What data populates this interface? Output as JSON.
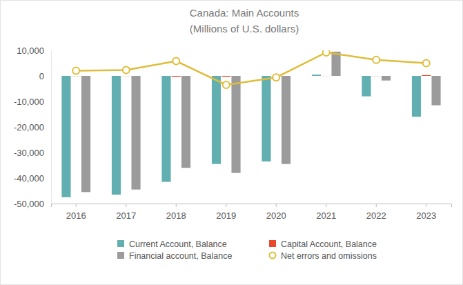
{
  "chart_data": {
    "type": "bar",
    "title": "Canada: Main Accounts",
    "subtitle": "(Millions of U.S. dollars)",
    "categories": [
      "2016",
      "2017",
      "2018",
      "2019",
      "2020",
      "2021",
      "2022",
      "2023"
    ],
    "series": [
      {
        "name": "Current Account, Balance",
        "color": "#62afb1",
        "type": "bar",
        "values": [
          -47500,
          -46500,
          -41500,
          -34500,
          -33500,
          500,
          -8000,
          -16000
        ]
      },
      {
        "name": "Capital Account, Balance",
        "color": "#e8482b",
        "type": "bar",
        "values": [
          -50,
          -50,
          -300,
          -300,
          -100,
          -30,
          -50,
          300
        ]
      },
      {
        "name": "Financial account, Balance",
        "color": "#9b9b9b",
        "type": "bar",
        "values": [
          -45500,
          -44500,
          -36000,
          -38000,
          -34500,
          9500,
          -1800,
          -11500
        ]
      },
      {
        "name": "Net errors and omissions",
        "color": "#dfbd3a",
        "type": "line",
        "marker": "circle",
        "values": [
          2000,
          2300,
          5800,
          -3500,
          -600,
          9200,
          6300,
          5000
        ]
      }
    ],
    "ylim": [
      -50000,
      10000
    ],
    "yticks": [
      {
        "value": -50000,
        "label": "-50,000"
      },
      {
        "value": -40000,
        "label": "-40,000"
      },
      {
        "value": -30000,
        "label": "-30,000"
      },
      {
        "value": -20000,
        "label": "-20,000"
      },
      {
        "value": -10000,
        "label": "-10,000"
      },
      0,
      {
        "value": 10000,
        "label": "10,000"
      }
    ],
    "grid": false,
    "legend": "bottom"
  }
}
